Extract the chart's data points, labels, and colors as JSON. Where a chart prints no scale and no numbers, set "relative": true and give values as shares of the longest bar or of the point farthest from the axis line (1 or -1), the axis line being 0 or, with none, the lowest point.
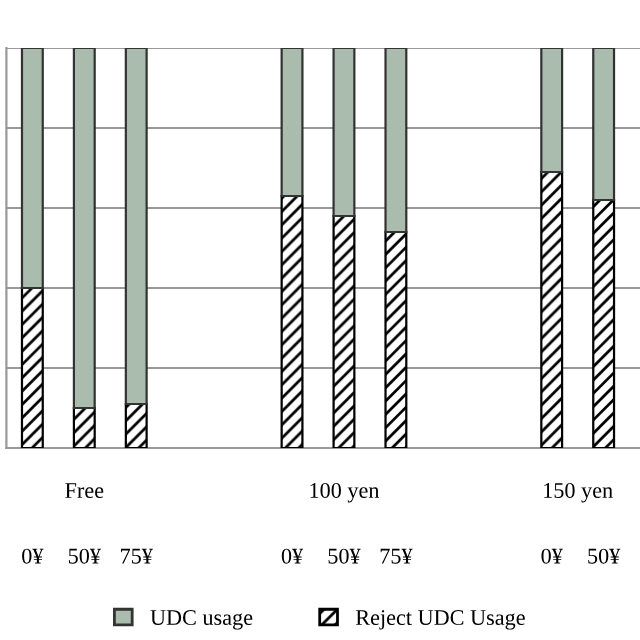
{
  "chart_data": {
    "type": "bar",
    "stacked": true,
    "relative": true,
    "categories": [
      "0¥",
      "50¥",
      "75¥",
      null,
      null,
      "0¥",
      "50¥",
      "75¥",
      null,
      null,
      "0¥",
      "50¥"
    ],
    "series": [
      {
        "name": "Reject UDC Usage",
        "color": "#000000",
        "values": [
          0.4,
          0.1,
          0.11,
          null,
          null,
          0.63,
          0.58,
          0.54,
          null,
          null,
          0.69,
          0.62
        ]
      },
      {
        "name": "UDC usage",
        "color": "#a9bcae",
        "values": [
          0.6,
          0.9,
          0.89,
          null,
          null,
          0.37,
          0.42,
          0.46,
          null,
          null,
          0.31,
          0.38
        ]
      }
    ],
    "annotations": [
      "Free",
      "100 yen",
      "150 yen"
    ],
    "grid": "y",
    "legend": "bottom"
  }
}
